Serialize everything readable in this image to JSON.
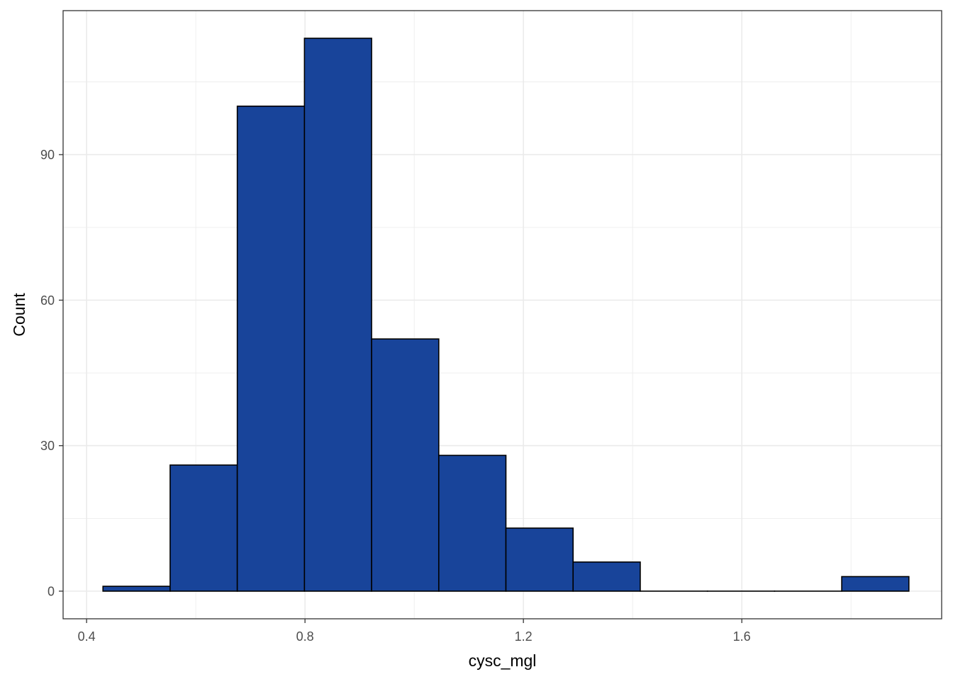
{
  "chart_data": {
    "type": "bar",
    "subtype": "histogram",
    "title": "",
    "xlabel": "cysc_mgl",
    "ylabel": "Count",
    "x_ticks": [
      0.4,
      0.8,
      1.2,
      1.6
    ],
    "x_tick_labels": [
      "0.4",
      "0.8",
      "1.2",
      "1.6"
    ],
    "y_ticks": [
      0,
      30,
      60,
      90
    ],
    "y_tick_labels": [
      "0",
      "30",
      "60",
      "90"
    ],
    "xlim": [
      0.357,
      1.966
    ],
    "ylim": [
      -5.7,
      119.7
    ],
    "grid": true,
    "fill_color": "#18449a",
    "outline_color": "#000000",
    "bins": [
      {
        "x_min": 0.43,
        "x_max": 0.553,
        "count": 1
      },
      {
        "x_min": 0.553,
        "x_max": 0.676,
        "count": 26
      },
      {
        "x_min": 0.676,
        "x_max": 0.799,
        "count": 100
      },
      {
        "x_min": 0.799,
        "x_max": 0.922,
        "count": 114
      },
      {
        "x_min": 0.922,
        "x_max": 1.045,
        "count": 52
      },
      {
        "x_min": 1.045,
        "x_max": 1.168,
        "count": 28
      },
      {
        "x_min": 1.168,
        "x_max": 1.291,
        "count": 13
      },
      {
        "x_min": 1.291,
        "x_max": 1.414,
        "count": 6
      },
      {
        "x_min": 1.414,
        "x_max": 1.537,
        "count": 0
      },
      {
        "x_min": 1.537,
        "x_max": 1.66,
        "count": 0
      },
      {
        "x_min": 1.66,
        "x_max": 1.783,
        "count": 0
      },
      {
        "x_min": 1.783,
        "x_max": 1.906,
        "count": 3
      }
    ]
  }
}
